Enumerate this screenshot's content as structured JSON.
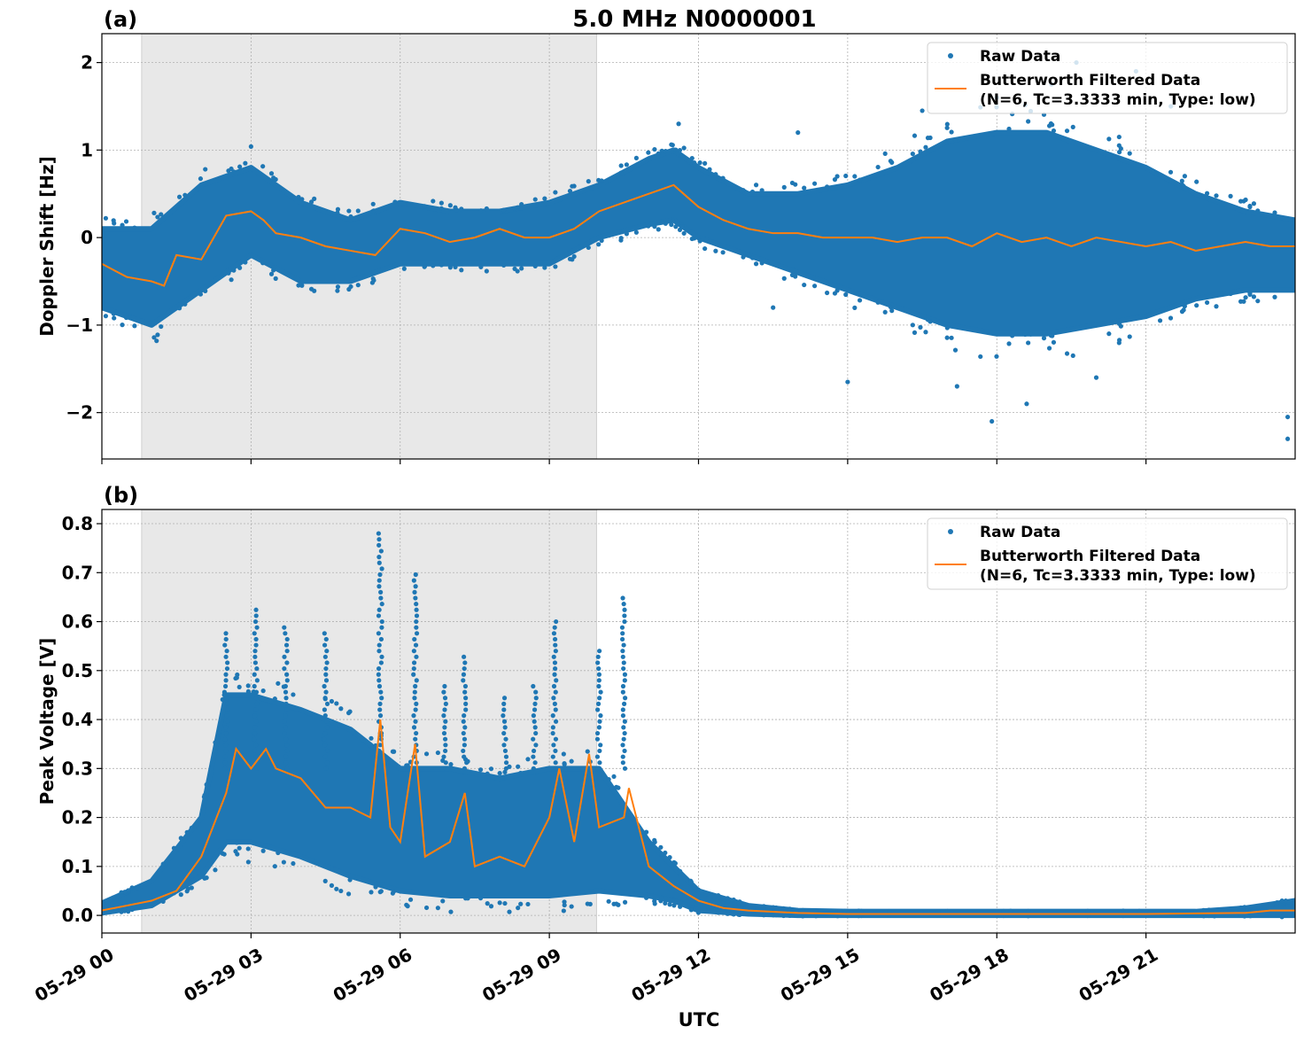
{
  "figure_title": "5.0 MHz N0000001",
  "xlabel": "UTC",
  "x_tick_labels": [
    "05-29 00",
    "05-29 03",
    "05-29 06",
    "05-29 09",
    "05-29 12",
    "05-29 15",
    "05-29 18",
    "05-29 21"
  ],
  "colors": {
    "raw": "#1f77b4",
    "filtered": "#ff7f0e",
    "shade": "#e8e8e8",
    "grid": "#b0b0b0"
  },
  "legend": {
    "raw": "Raw Data",
    "filtered_line1": "Butterworth Filtered Data",
    "filtered_line2": "(N=6, Tc=3.3333 min, Type: low)"
  },
  "chart_data": [
    {
      "panel_label": "(a)",
      "type": "scatter",
      "ylabel": "Doppler Shift [Hz]",
      "xunit": "hours UTC since 05-29 00",
      "xlim": [
        0,
        24
      ],
      "ylim": [
        -2.53,
        2.33
      ],
      "yticks": [
        -2,
        -1,
        0,
        1,
        2
      ],
      "ytick_labels": [
        "−2",
        "−1",
        "0",
        "1",
        "2"
      ],
      "grid": true,
      "legend_position": "top-right",
      "shaded_interval": [
        0.8,
        9.95
      ],
      "raw_envelope": [
        [
          0,
          -0.8,
          0.1
        ],
        [
          1,
          -1.0,
          0.1
        ],
        [
          2,
          -0.6,
          0.6
        ],
        [
          3,
          -0.2,
          0.8
        ],
        [
          4,
          -0.5,
          0.4
        ],
        [
          5,
          -0.5,
          0.2
        ],
        [
          6,
          -0.3,
          0.4
        ],
        [
          7,
          -0.3,
          0.3
        ],
        [
          8,
          -0.3,
          0.3
        ],
        [
          9,
          -0.3,
          0.4
        ],
        [
          10,
          0.0,
          0.6
        ],
        [
          11,
          0.15,
          0.9
        ],
        [
          11.5,
          0.2,
          1.0
        ],
        [
          12,
          0.0,
          0.8
        ],
        [
          13,
          -0.2,
          0.5
        ],
        [
          14,
          -0.4,
          0.5
        ],
        [
          15,
          -0.6,
          0.6
        ],
        [
          16,
          -0.8,
          0.8
        ],
        [
          17,
          -1.0,
          1.1
        ],
        [
          18,
          -1.1,
          1.2
        ],
        [
          19,
          -1.1,
          1.2
        ],
        [
          20,
          -1.0,
          1.0
        ],
        [
          21,
          -0.9,
          0.8
        ],
        [
          22,
          -0.7,
          0.5
        ],
        [
          23,
          -0.6,
          0.3
        ],
        [
          24,
          -0.6,
          0.2
        ]
      ],
      "raw_outliers": [
        [
          1.1,
          -1.18
        ],
        [
          3.0,
          1.04
        ],
        [
          11.6,
          1.3
        ],
        [
          17.9,
          -2.1
        ],
        [
          18.6,
          -1.9
        ],
        [
          19.1,
          1.75
        ],
        [
          19.6,
          2.0
        ],
        [
          20.8,
          1.9
        ],
        [
          15.0,
          -1.65
        ],
        [
          23.85,
          -2.3
        ],
        [
          23.85,
          -2.05
        ],
        [
          16.5,
          1.45
        ],
        [
          18.0,
          1.6
        ],
        [
          14.0,
          1.2
        ],
        [
          13.5,
          -0.8
        ],
        [
          20.0,
          -1.6
        ],
        [
          17.2,
          -1.7
        ],
        [
          21.5,
          1.5
        ]
      ],
      "filtered": [
        [
          0,
          -0.3
        ],
        [
          0.5,
          -0.45
        ],
        [
          1.0,
          -0.5
        ],
        [
          1.25,
          -0.55
        ],
        [
          1.5,
          -0.2
        ],
        [
          2.0,
          -0.25
        ],
        [
          2.25,
          0.0
        ],
        [
          2.5,
          0.25
        ],
        [
          3.0,
          0.3
        ],
        [
          3.25,
          0.2
        ],
        [
          3.5,
          0.05
        ],
        [
          4.0,
          0.0
        ],
        [
          4.5,
          -0.1
        ],
        [
          5.0,
          -0.15
        ],
        [
          5.5,
          -0.2
        ],
        [
          6.0,
          0.1
        ],
        [
          6.5,
          0.05
        ],
        [
          7.0,
          -0.05
        ],
        [
          7.5,
          0.0
        ],
        [
          8.0,
          0.1
        ],
        [
          8.5,
          0.0
        ],
        [
          9.0,
          0.0
        ],
        [
          9.5,
          0.1
        ],
        [
          10.0,
          0.3
        ],
        [
          10.5,
          0.4
        ],
        [
          11.0,
          0.5
        ],
        [
          11.5,
          0.6
        ],
        [
          12.0,
          0.35
        ],
        [
          12.5,
          0.2
        ],
        [
          13.0,
          0.1
        ],
        [
          13.5,
          0.05
        ],
        [
          14,
          0.05
        ],
        [
          14.5,
          0.0
        ],
        [
          15,
          0.0
        ],
        [
          15.5,
          0.0
        ],
        [
          16,
          -0.05
        ],
        [
          16.5,
          0.0
        ],
        [
          17,
          0.0
        ],
        [
          17.5,
          -0.1
        ],
        [
          18,
          0.05
        ],
        [
          18.5,
          -0.05
        ],
        [
          19,
          0.0
        ],
        [
          19.5,
          -0.1
        ],
        [
          20,
          0.0
        ],
        [
          20.5,
          -0.05
        ],
        [
          21,
          -0.1
        ],
        [
          21.5,
          -0.05
        ],
        [
          22,
          -0.15
        ],
        [
          22.5,
          -0.1
        ],
        [
          23,
          -0.05
        ],
        [
          23.5,
          -0.1
        ],
        [
          24,
          -0.1
        ]
      ]
    },
    {
      "panel_label": "(b)",
      "type": "scatter",
      "ylabel": "Peak Voltage [V]",
      "xunit": "hours UTC since 05-29 00",
      "xlim": [
        0,
        24
      ],
      "ylim": [
        -0.036,
        0.829
      ],
      "yticks": [
        0,
        0.1,
        0.2,
        0.3,
        0.4,
        0.5,
        0.6,
        0.7,
        0.8
      ],
      "ytick_labels": [
        "0.0",
        "0.1",
        "0.2",
        "0.3",
        "0.4",
        "0.5",
        "0.6",
        "0.7",
        "0.8"
      ],
      "grid": true,
      "legend_position": "top-right",
      "shaded_interval": [
        0.8,
        9.95
      ],
      "raw_envelope": [
        [
          0,
          0.005,
          0.025
        ],
        [
          1,
          0.02,
          0.07
        ],
        [
          2,
          0.08,
          0.2
        ],
        [
          2.5,
          0.15,
          0.45
        ],
        [
          3,
          0.15,
          0.45
        ],
        [
          4,
          0.12,
          0.42
        ],
        [
          5,
          0.08,
          0.38
        ],
        [
          6,
          0.05,
          0.3
        ],
        [
          7,
          0.04,
          0.3
        ],
        [
          8,
          0.04,
          0.28
        ],
        [
          9,
          0.04,
          0.3
        ],
        [
          10,
          0.05,
          0.3
        ],
        [
          11,
          0.04,
          0.15
        ],
        [
          11.5,
          0.03,
          0.1
        ],
        [
          12,
          0.01,
          0.05
        ],
        [
          13,
          0.003,
          0.02
        ],
        [
          14,
          0.0,
          0.01
        ],
        [
          15,
          0.0,
          0.008
        ],
        [
          18,
          0.0,
          0.008
        ],
        [
          22,
          0.0,
          0.008
        ],
        [
          23,
          0.0,
          0.015
        ],
        [
          24,
          0.0,
          0.03
        ]
      ],
      "raw_spikes": [
        [
          5.6,
          0.79
        ],
        [
          6.3,
          0.7
        ],
        [
          10.5,
          0.65
        ],
        [
          9.1,
          0.61
        ],
        [
          3.1,
          0.63
        ],
        [
          2.5,
          0.58
        ],
        [
          4.5,
          0.58
        ],
        [
          8.7,
          0.48
        ],
        [
          7.3,
          0.53
        ],
        [
          11.3,
          0.29
        ],
        [
          10.0,
          0.55
        ],
        [
          3.7,
          0.6
        ],
        [
          6.9,
          0.47
        ],
        [
          8.1,
          0.45
        ]
      ],
      "filtered": [
        [
          0,
          0.01
        ],
        [
          0.5,
          0.02
        ],
        [
          1,
          0.03
        ],
        [
          1.5,
          0.05
        ],
        [
          2,
          0.12
        ],
        [
          2.5,
          0.25
        ],
        [
          2.7,
          0.34
        ],
        [
          3,
          0.3
        ],
        [
          3.3,
          0.34
        ],
        [
          3.5,
          0.3
        ],
        [
          4,
          0.28
        ],
        [
          4.5,
          0.22
        ],
        [
          5,
          0.22
        ],
        [
          5.4,
          0.2
        ],
        [
          5.6,
          0.4
        ],
        [
          5.8,
          0.18
        ],
        [
          6,
          0.15
        ],
        [
          6.3,
          0.35
        ],
        [
          6.5,
          0.12
        ],
        [
          7,
          0.15
        ],
        [
          7.3,
          0.25
        ],
        [
          7.5,
          0.1
        ],
        [
          8,
          0.12
        ],
        [
          8.5,
          0.1
        ],
        [
          9,
          0.2
        ],
        [
          9.2,
          0.3
        ],
        [
          9.5,
          0.15
        ],
        [
          9.8,
          0.33
        ],
        [
          10,
          0.18
        ],
        [
          10.5,
          0.2
        ],
        [
          10.6,
          0.26
        ],
        [
          11,
          0.1
        ],
        [
          11.5,
          0.06
        ],
        [
          12,
          0.03
        ],
        [
          12.5,
          0.015
        ],
        [
          13,
          0.01
        ],
        [
          14,
          0.005
        ],
        [
          15,
          0.003
        ],
        [
          18,
          0.003
        ],
        [
          21,
          0.003
        ],
        [
          23,
          0.005
        ],
        [
          23.5,
          0.01
        ],
        [
          24,
          0.01
        ]
      ]
    }
  ]
}
